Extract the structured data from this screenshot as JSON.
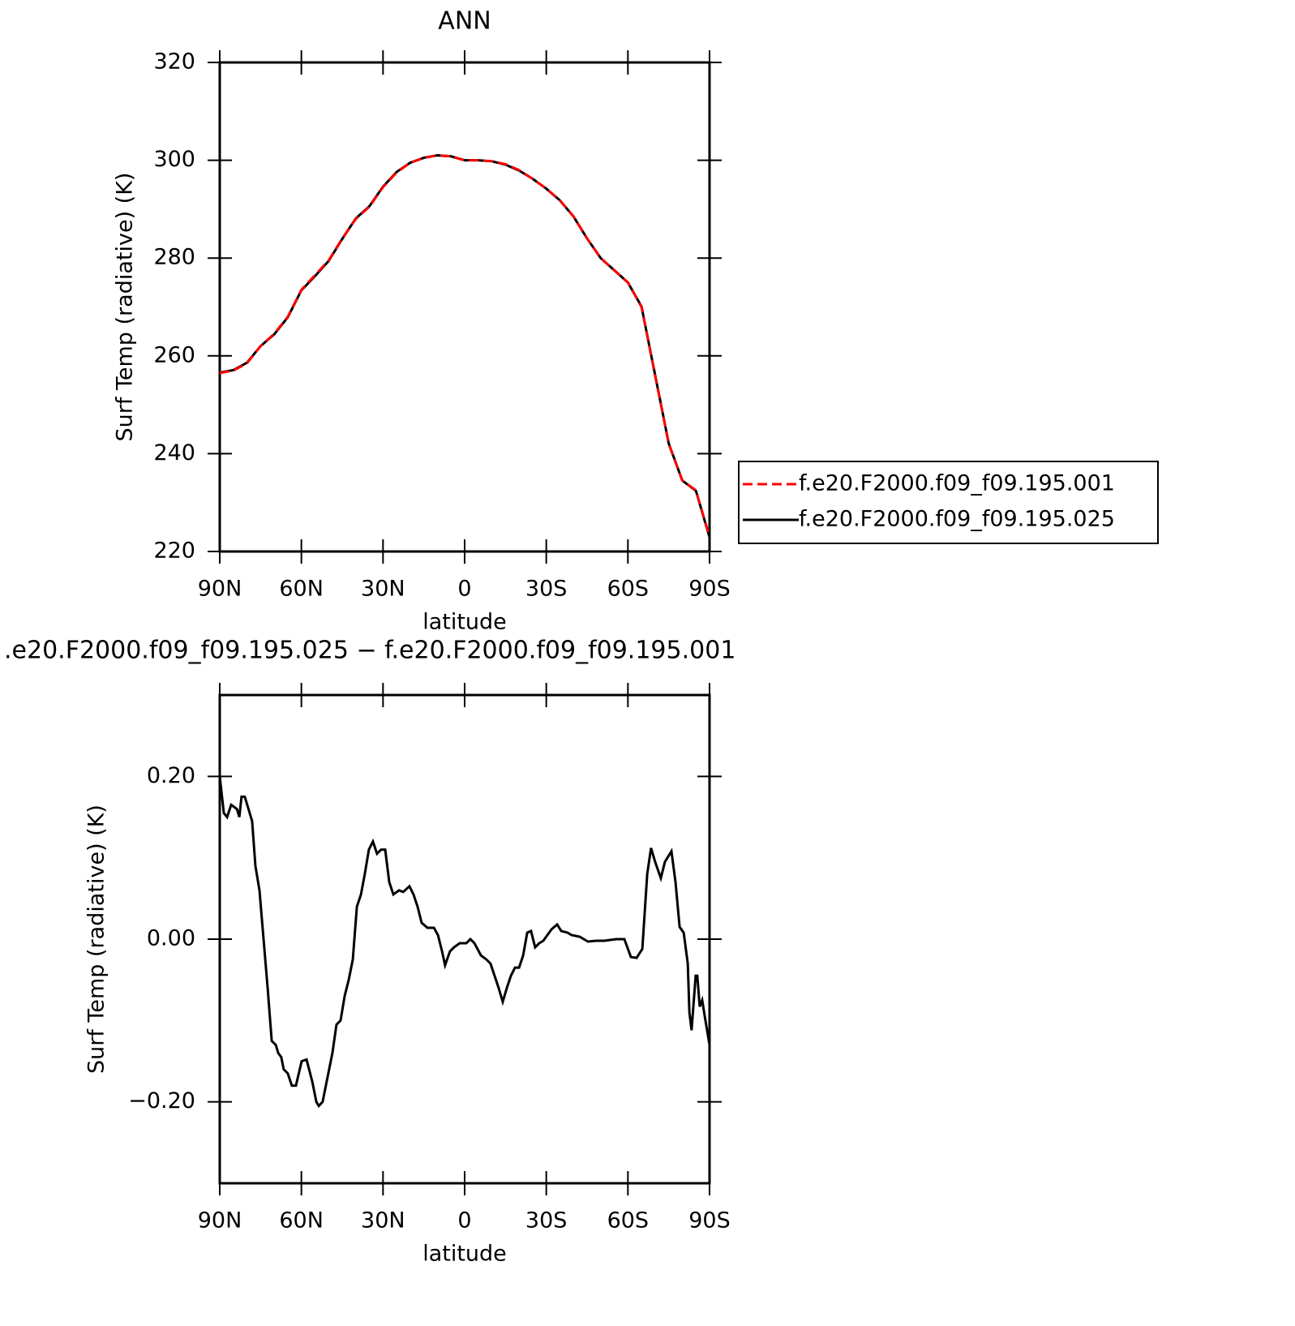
{
  "chart_data": [
    {
      "type": "line",
      "title": "ANN",
      "xlabel": "latitude",
      "ylabel": "Surf Temp (radiative) (K)",
      "x": [
        90,
        85,
        80,
        75,
        70,
        65,
        60,
        55,
        50,
        45,
        40,
        35,
        30,
        25,
        20,
        15,
        10,
        5,
        0,
        -5,
        -10,
        -15,
        -20,
        -25,
        -30,
        -35,
        -40,
        -45,
        -50,
        -55,
        -60,
        -65,
        -70,
        -75,
        -80,
        -85,
        -90
      ],
      "series": [
        {
          "name": "f.e20.F2000.f09_f09.195.001",
          "color": "#ff0000",
          "dash": true,
          "values": [
            256.5,
            257,
            258.5,
            262,
            264.5,
            268,
            273.5,
            276.5,
            279.5,
            284,
            288,
            290.5,
            294.5,
            297.5,
            299.5,
            300.5,
            301,
            300.8,
            300,
            300,
            299.8,
            299.2,
            298,
            296.2,
            294.2,
            291.8,
            288.5,
            284,
            280,
            277.5,
            275,
            270,
            256,
            242,
            234.5,
            232.5,
            223
          ]
        },
        {
          "name": "f.e20.F2000.f09_f09.195.025",
          "color": "#000000",
          "dash": false,
          "values": [
            256.6,
            257.1,
            258.6,
            262,
            264.4,
            267.9,
            273.4,
            276.3,
            279.4,
            283.9,
            288.1,
            290.6,
            294.6,
            297.6,
            299.5,
            300.5,
            301,
            300.8,
            300,
            300,
            299.8,
            299.1,
            297.9,
            296.2,
            294.2,
            291.8,
            288.5,
            284,
            280,
            277.5,
            275,
            270.1,
            256.1,
            242.1,
            234.5,
            232.4,
            222.9
          ]
        }
      ],
      "xlim": [
        90,
        -90
      ],
      "ylim": [
        220,
        320
      ],
      "xticks": [
        {
          "value": 90,
          "label": "90N"
        },
        {
          "value": 60,
          "label": "60N"
        },
        {
          "value": 30,
          "label": "30N"
        },
        0,
        {
          "value": -30,
          "label": "30S"
        },
        {
          "value": -60,
          "label": "60S"
        },
        {
          "value": -90,
          "label": "90S"
        }
      ],
      "yticks": [
        220,
        240,
        260,
        280,
        300,
        320
      ],
      "legend": "right"
    },
    {
      "type": "line",
      "title": ".e20.F2000.f09_f09.195.025 − f.e20.F2000.f09_f09.195.001",
      "xlabel": "latitude",
      "ylabel": "Surf Temp (radiative) (K)",
      "x": [
        90,
        88.5,
        87.3,
        85.8,
        83.7,
        82.8,
        82.0,
        80.8,
        79.0,
        78.1,
        76.9,
        75.4,
        73.9,
        72.4,
        70.9,
        69.4,
        68.5,
        67.4,
        66.5,
        65.0,
        63.5,
        62.0,
        59.9,
        58.1,
        56.0,
        54.5,
        53.6,
        52.2,
        50.7,
        48.6,
        47.1,
        45.6,
        44.1,
        42.6,
        41.1,
        39.6,
        38.1,
        36.7,
        35.2,
        33.7,
        32.2,
        30.7,
        29.2,
        27.7,
        26.2,
        24.1,
        22.6,
        20.3,
        18.8,
        17.3,
        15.8,
        13.7,
        11.3,
        9.8,
        8.3,
        7.2,
        5.4,
        3.9,
        1.8,
        -0.6,
        -2.1,
        -3.6,
        -6.0,
        -8.0,
        -9.5,
        -11.0,
        -12.5,
        -14.0,
        -15.5,
        -17.0,
        -18.5,
        -20.0,
        -21.5,
        -23.0,
        -24.4,
        -25.9,
        -27.4,
        -28.9,
        -30.4,
        -31.9,
        -34.0,
        -35.5,
        -37.8,
        -39.3,
        -42.3,
        -45.3,
        -48.3,
        -51.3,
        -55.7,
        -58.7,
        -61.1,
        -63.2,
        -65.3,
        -67.1,
        -68.5,
        -70.0,
        -72.1,
        -73.6,
        -76.0,
        -77.5,
        -79.0,
        -80.5,
        -82.0,
        -82.6,
        -83.4,
        -84.9,
        -85.5,
        -86.4,
        -87.3,
        -88.5,
        -90
      ],
      "series": [
        {
          "name": null,
          "color": "#000000",
          "dash": false,
          "values": [
            0.2,
            0.155,
            0.15,
            0.165,
            0.16,
            0.15,
            0.175,
            0.175,
            0.155,
            0.145,
            0.09,
            0.06,
            0.0,
            -0.06,
            -0.125,
            -0.13,
            -0.14,
            -0.145,
            -0.16,
            -0.165,
            -0.18,
            -0.18,
            -0.15,
            -0.148,
            -0.175,
            -0.2,
            -0.205,
            -0.2,
            -0.175,
            -0.14,
            -0.105,
            -0.1,
            -0.07,
            -0.05,
            -0.025,
            0.04,
            0.055,
            0.08,
            0.11,
            0.12,
            0.105,
            0.11,
            0.11,
            0.07,
            0.055,
            0.06,
            0.058,
            0.065,
            0.055,
            0.04,
            0.02,
            0.014,
            0.014,
            0.005,
            -0.015,
            -0.032,
            -0.015,
            -0.01,
            -0.005,
            -0.005,
            0.0,
            -0.005,
            -0.02,
            -0.025,
            -0.03,
            -0.045,
            -0.06,
            -0.077,
            -0.06,
            -0.045,
            -0.035,
            -0.035,
            -0.02,
            0.008,
            0.01,
            -0.01,
            -0.005,
            -0.002,
            0.005,
            0.012,
            0.018,
            0.01,
            0.008,
            0.005,
            0.003,
            -0.003,
            -0.002,
            -0.002,
            0.0,
            0.0,
            -0.022,
            -0.023,
            -0.012,
            0.08,
            0.112,
            0.095,
            0.075,
            0.095,
            0.108,
            0.07,
            0.015,
            0.008,
            -0.03,
            -0.09,
            -0.112,
            -0.045,
            -0.045,
            -0.083,
            -0.075,
            -0.1,
            -0.13
          ]
        }
      ],
      "xlim": [
        90,
        -90
      ],
      "ylim": [
        -0.3,
        0.3
      ],
      "xticks": [
        {
          "value": 90,
          "label": "90N"
        },
        {
          "value": 60,
          "label": "60N"
        },
        {
          "value": 30,
          "label": "30N"
        },
        0,
        {
          "value": -30,
          "label": "30S"
        },
        {
          "value": -60,
          "label": "60S"
        },
        {
          "value": -90,
          "label": "90S"
        }
      ],
      "yticks": [
        {
          "value": 0.2,
          "label": "0.20"
        },
        {
          "value": 0,
          "label": "0.00"
        },
        {
          "value": -0.2,
          "label": "−0.20"
        }
      ]
    }
  ]
}
